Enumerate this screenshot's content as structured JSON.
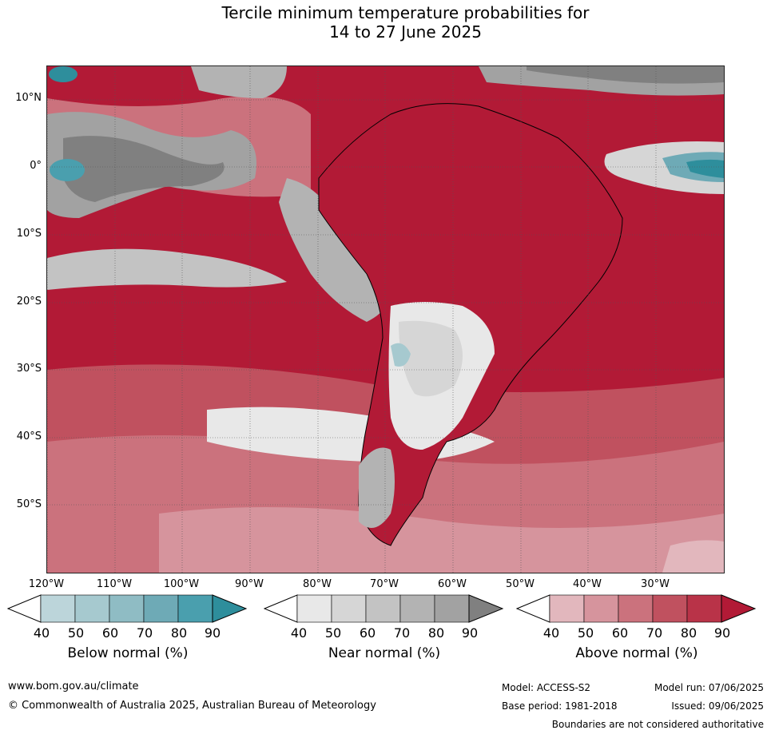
{
  "title_line1": "Tercile minimum temperature probabilities for",
  "title_line2": "14 to 27 June 2025",
  "map": {
    "lat_labels": [
      "10°N",
      "0°",
      "10°S",
      "20°S",
      "30°S",
      "40°S",
      "50°S"
    ],
    "lon_labels": [
      "120°W",
      "110°W",
      "100°W",
      "90°W",
      "80°W",
      "70°W",
      "60°W",
      "50°W",
      "40°W",
      "30°W"
    ],
    "extent": {
      "lon_min": -120,
      "lon_max": -20,
      "lat_min": -60,
      "lat_max": 15
    },
    "dominant_category": "above-normal",
    "colors": {
      "above": [
        "#e2b7bd",
        "#d6949d",
        "#cb727d",
        "#c0515f",
        "#b93348",
        "#b21a36"
      ],
      "near": [
        "#e8e8e8",
        "#d6d6d6",
        "#c3c3c3",
        "#b3b3b3",
        "#a2a2a2",
        "#808080"
      ],
      "below": [
        "#bcd5da",
        "#a6c9cf",
        "#8fbcc4",
        "#6eaab6",
        "#4a9fae",
        "#2e8e9c"
      ]
    }
  },
  "legend": [
    {
      "title": "Below normal (%)",
      "ticks": [
        "40",
        "50",
        "60",
        "70",
        "80",
        "90"
      ],
      "colors": [
        "#bcd5da",
        "#a6c9cf",
        "#8fbcc4",
        "#6eaab6",
        "#4a9fae",
        "#2e8e9c"
      ]
    },
    {
      "title": "Near normal (%)",
      "ticks": [
        "40",
        "50",
        "60",
        "70",
        "80",
        "90"
      ],
      "colors": [
        "#e8e8e8",
        "#d6d6d6",
        "#c3c3c3",
        "#b3b3b3",
        "#a2a2a2",
        "#808080"
      ]
    },
    {
      "title": "Above normal (%)",
      "ticks": [
        "40",
        "50",
        "60",
        "70",
        "80",
        "90"
      ],
      "colors": [
        "#e2b7bd",
        "#d6949d",
        "#cb727d",
        "#c0515f",
        "#b93348",
        "#b21a36"
      ]
    }
  ],
  "footer": {
    "url": "www.bom.gov.au/climate",
    "copyright": "© Commonwealth of Australia 2025, Australian Bureau of Meteorology",
    "model": "Model: ACCESS-S2",
    "model_run": "Model run: 07/06/2025",
    "base_period": "Base period: 1981-2018",
    "issued": "Issued: 09/06/2025",
    "disclaimer": "Boundaries are not considered authoritative"
  }
}
